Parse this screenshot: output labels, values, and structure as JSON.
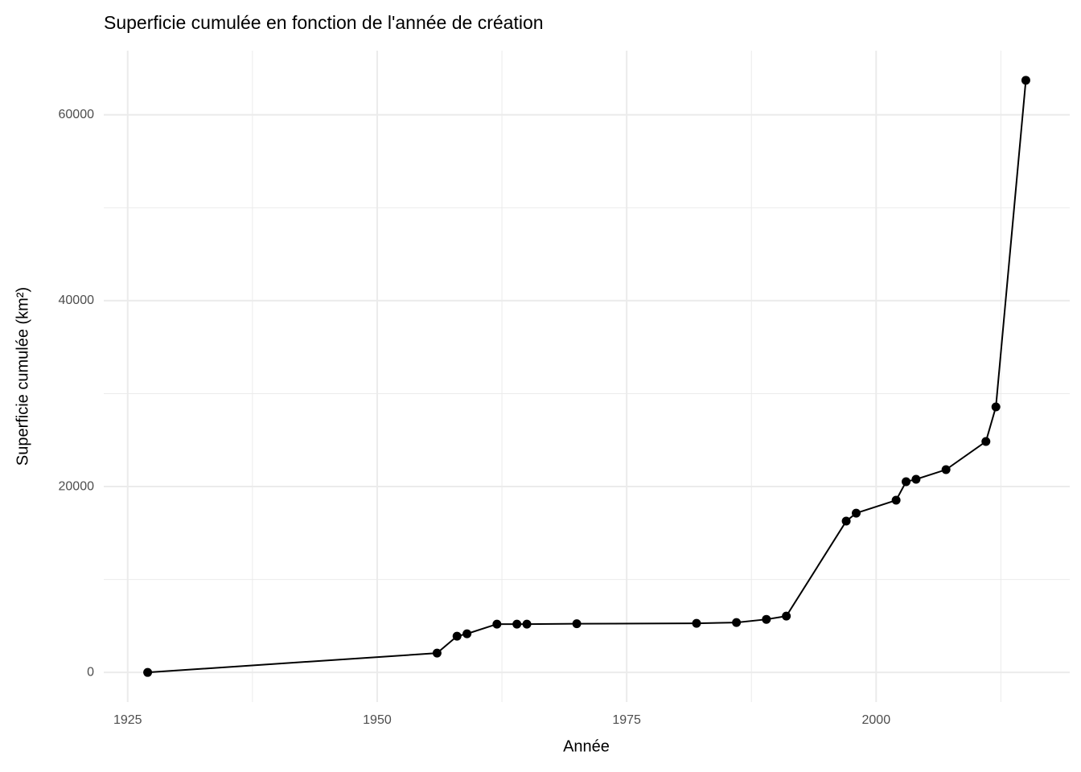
{
  "chart_data": {
    "type": "line",
    "title": "Superficie cumulée en fonction de l'année de création",
    "x_label": "Année",
    "y_label": "Superficie cumulée (km²)",
    "x": [
      1927,
      1956,
      1958,
      1959,
      1962,
      1964,
      1965,
      1970,
      1982,
      1986,
      1989,
      1991,
      1997,
      1998,
      2002,
      2003,
      2004,
      2007,
      2011,
      2012,
      2015
    ],
    "series": [
      {
        "name": "Superficie cumulée",
        "color": "#000000",
        "values": [
          0,
          2080,
          3900,
          4160,
          5200,
          5200,
          5200,
          5240,
          5280,
          5370,
          5710,
          6060,
          16280,
          17140,
          18530,
          20520,
          20780,
          21820,
          24850,
          28570,
          63720
        ]
      }
    ],
    "xlim": [
      1922.6,
      2019.4
    ],
    "ylim": [
      -3186,
      66906
    ],
    "xticks": [
      1925,
      1950,
      1975,
      2000
    ],
    "yticks": [
      0,
      20000,
      40000,
      60000
    ],
    "xminor": [
      1937.5,
      1962.5,
      1987.5,
      2012.5
    ],
    "yminor": [
      10000,
      30000,
      50000
    ],
    "grid": true,
    "markers": true
  }
}
